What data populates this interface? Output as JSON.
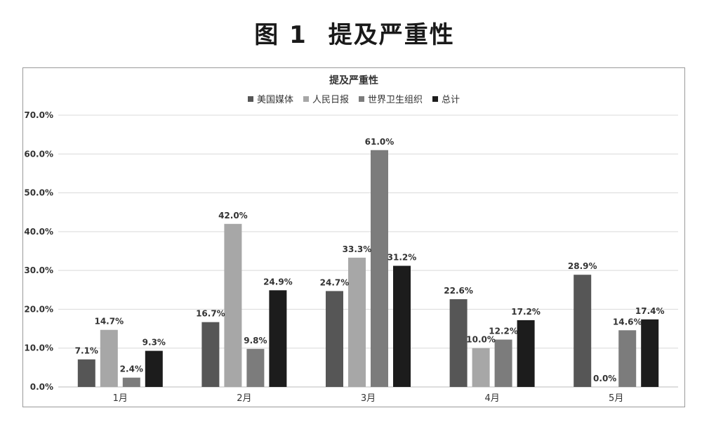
{
  "figure": {
    "number": "图 1",
    "caption": "提及严重性"
  },
  "chart_data": {
    "type": "bar",
    "title": "提及严重性",
    "categories": [
      "1月",
      "2月",
      "3月",
      "4月",
      "5月"
    ],
    "series": [
      {
        "name": "美国媒体",
        "color": "#565656",
        "values": [
          7.1,
          16.7,
          24.7,
          22.6,
          28.9
        ]
      },
      {
        "name": "人民日报",
        "color": "#a7a7a7",
        "values": [
          14.7,
          42.0,
          33.3,
          10.0,
          0.0
        ]
      },
      {
        "name": "世界卫生组织",
        "color": "#7c7c7c",
        "values": [
          2.4,
          9.8,
          61.0,
          12.2,
          14.6
        ]
      },
      {
        "name": "总计",
        "color": "#1c1c1c",
        "values": [
          9.3,
          24.9,
          31.2,
          17.2,
          17.4
        ]
      }
    ],
    "data_labels": [
      [
        "7.1%",
        "16.7%",
        "24.7%",
        "22.6%",
        "28.9%"
      ],
      [
        "14.7%",
        "42.0%",
        "33.3%",
        "10.0%",
        "0.0%"
      ],
      [
        "2.4%",
        "9.8%",
        "61.0%",
        "12.2%",
        "14.6%"
      ],
      [
        "9.3%",
        "24.9%",
        "31.2%",
        "17.2%",
        "17.4%"
      ]
    ],
    "y_ticks": [
      "0.0%",
      "10.0%",
      "20.0%",
      "30.0%",
      "40.0%",
      "50.0%",
      "60.0%",
      "70.0%"
    ],
    "ylim": [
      0,
      70
    ],
    "xlabel": "",
    "ylabel": "",
    "grid": true,
    "legend_position": "top"
  }
}
